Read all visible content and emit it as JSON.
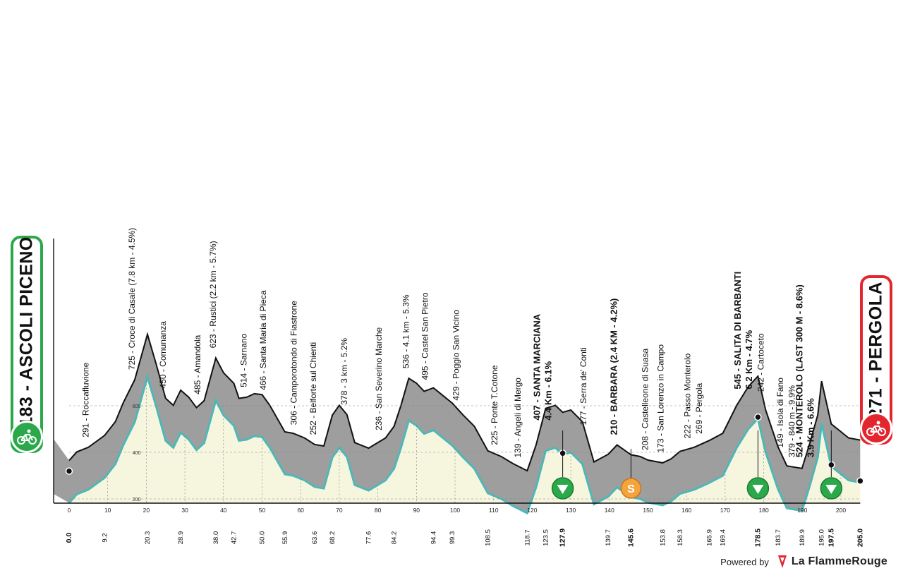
{
  "chart_data": {
    "type": "area",
    "x_unit": "km",
    "ylim": [
      0,
      900
    ],
    "y_ticks": [
      200,
      400,
      600
    ],
    "y_tick_labels": [
      "200",
      "400",
      "600"
    ],
    "x_ticks": [
      0,
      10,
      20,
      30,
      40,
      50,
      60,
      70,
      80,
      90,
      100,
      110,
      120,
      130,
      140,
      150,
      160,
      170,
      180,
      190,
      200
    ],
    "x_tick_labels": [
      "0",
      "10",
      "20",
      "30",
      "40",
      "50",
      "60",
      "70",
      "80",
      "90",
      "100",
      "110",
      "120",
      "130",
      "140",
      "150",
      "160",
      "170",
      "180",
      "190",
      "200"
    ],
    "profile": [
      {
        "km": 0,
        "ele": 183
      },
      {
        "km": 2,
        "ele": 220
      },
      {
        "km": 5,
        "ele": 240
      },
      {
        "km": 9.2,
        "ele": 291
      },
      {
        "km": 12,
        "ele": 350
      },
      {
        "km": 14,
        "ele": 430
      },
      {
        "km": 17,
        "ele": 530
      },
      {
        "km": 20.3,
        "ele": 725
      },
      {
        "km": 22.5,
        "ele": 600
      },
      {
        "km": 25,
        "ele": 450
      },
      {
        "km": 27,
        "ele": 420
      },
      {
        "km": 28.9,
        "ele": 485
      },
      {
        "km": 31,
        "ele": 455
      },
      {
        "km": 33,
        "ele": 410
      },
      {
        "km": 35,
        "ele": 440
      },
      {
        "km": 38,
        "ele": 623
      },
      {
        "km": 40,
        "ele": 560
      },
      {
        "km": 42.7,
        "ele": 514
      },
      {
        "km": 44,
        "ele": 450
      },
      {
        "km": 46,
        "ele": 455
      },
      {
        "km": 48,
        "ele": 470
      },
      {
        "km": 50,
        "ele": 466
      },
      {
        "km": 52,
        "ele": 420
      },
      {
        "km": 55.9,
        "ele": 306
      },
      {
        "km": 58,
        "ele": 300
      },
      {
        "km": 61,
        "ele": 280
      },
      {
        "km": 63.6,
        "ele": 252
      },
      {
        "km": 66,
        "ele": 245
      },
      {
        "km": 68.2,
        "ele": 378
      },
      {
        "km": 70,
        "ele": 420
      },
      {
        "km": 72,
        "ele": 380
      },
      {
        "km": 74,
        "ele": 260
      },
      {
        "km": 77.6,
        "ele": 236
      },
      {
        "km": 79,
        "ele": 250
      },
      {
        "km": 82,
        "ele": 280
      },
      {
        "km": 84.2,
        "ele": 330
      },
      {
        "km": 86,
        "ele": 420
      },
      {
        "km": 88,
        "ele": 536
      },
      {
        "km": 90,
        "ele": 515
      },
      {
        "km": 92,
        "ele": 480
      },
      {
        "km": 94.4,
        "ele": 495
      },
      {
        "km": 97,
        "ele": 460
      },
      {
        "km": 99.3,
        "ele": 429
      },
      {
        "km": 102,
        "ele": 380
      },
      {
        "km": 105,
        "ele": 330
      },
      {
        "km": 108.5,
        "ele": 225
      },
      {
        "km": 112,
        "ele": 200
      },
      {
        "km": 115,
        "ele": 170
      },
      {
        "km": 118.7,
        "ele": 139
      },
      {
        "km": 121,
        "ele": 250
      },
      {
        "km": 123.5,
        "ele": 407
      },
      {
        "km": 126,
        "ele": 420
      },
      {
        "km": 127.9,
        "ele": 390
      },
      {
        "km": 130,
        "ele": 400
      },
      {
        "km": 133,
        "ele": 350
      },
      {
        "km": 136,
        "ele": 177
      },
      {
        "km": 139.7,
        "ele": 210
      },
      {
        "km": 142,
        "ele": 250
      },
      {
        "km": 145.6,
        "ele": 208
      },
      {
        "km": 148,
        "ele": 200
      },
      {
        "km": 150,
        "ele": 185
      },
      {
        "km": 153.8,
        "ele": 173
      },
      {
        "km": 156,
        "ele": 190
      },
      {
        "km": 158.3,
        "ele": 222
      },
      {
        "km": 162,
        "ele": 240
      },
      {
        "km": 165.9,
        "ele": 269
      },
      {
        "km": 169.4,
        "ele": 300
      },
      {
        "km": 173,
        "ele": 420
      },
      {
        "km": 176,
        "ele": 500
      },
      {
        "km": 178.5,
        "ele": 545
      },
      {
        "km": 180.5,
        "ele": 400
      },
      {
        "km": 183.7,
        "ele": 242
      },
      {
        "km": 186,
        "ele": 160
      },
      {
        "km": 189.9,
        "ele": 149
      },
      {
        "km": 192,
        "ele": 260
      },
      {
        "km": 194,
        "ele": 379
      },
      {
        "km": 195,
        "ele": 524
      },
      {
        "km": 197.5,
        "ele": 340
      },
      {
        "km": 199,
        "ele": 320
      },
      {
        "km": 202,
        "ele": 280
      },
      {
        "km": 205.0,
        "ele": 271
      }
    ],
    "distance_labels": [
      {
        "km": 0.0,
        "label": "0.0",
        "bold": true
      },
      {
        "km": 9.2,
        "label": "9.2",
        "bold": false
      },
      {
        "km": 20.3,
        "label": "20.3",
        "bold": false
      },
      {
        "km": 28.9,
        "label": "28.9",
        "bold": false
      },
      {
        "km": 38.0,
        "label": "38.0",
        "bold": false
      },
      {
        "km": 42.7,
        "label": "42.7",
        "bold": false
      },
      {
        "km": 50.0,
        "label": "50.0",
        "bold": false
      },
      {
        "km": 55.9,
        "label": "55.9",
        "bold": false
      },
      {
        "km": 63.6,
        "label": "63.6",
        "bold": false
      },
      {
        "km": 68.2,
        "label": "68.2",
        "bold": false
      },
      {
        "km": 77.6,
        "label": "77.6",
        "bold": false
      },
      {
        "km": 84.2,
        "label": "84.2",
        "bold": false
      },
      {
        "km": 94.4,
        "label": "94.4",
        "bold": false
      },
      {
        "km": 99.3,
        "label": "99.3",
        "bold": false
      },
      {
        "km": 108.5,
        "label": "108.5",
        "bold": false
      },
      {
        "km": 118.7,
        "label": "118.7",
        "bold": false
      },
      {
        "km": 123.5,
        "label": "123.5",
        "bold": false
      },
      {
        "km": 127.9,
        "label": "127.9",
        "bold": true
      },
      {
        "km": 139.7,
        "label": "139.7",
        "bold": false
      },
      {
        "km": 145.6,
        "label": "145.6",
        "bold": true
      },
      {
        "km": 153.8,
        "label": "153.8",
        "bold": false
      },
      {
        "km": 158.3,
        "label": "158.3",
        "bold": false
      },
      {
        "km": 165.9,
        "label": "165.9",
        "bold": false
      },
      {
        "km": 169.4,
        "label": "169.4",
        "bold": false
      },
      {
        "km": 178.5,
        "label": "178.5",
        "bold": true
      },
      {
        "km": 183.7,
        "label": "183.7",
        "bold": false
      },
      {
        "km": 189.9,
        "label": "189.9",
        "bold": false
      },
      {
        "km": 195.0,
        "label": "195.0",
        "bold": false
      },
      {
        "km": 197.5,
        "label": "197.5",
        "bold": true
      },
      {
        "km": 205.0,
        "label": "205.0",
        "bold": true
      }
    ],
    "waypoints": [
      {
        "km": 5.0,
        "ele": 291,
        "label": "291 - Roccafluvione",
        "bold": false
      },
      {
        "km": 17.0,
        "ele": 725,
        "label": "725 - Croce di Casale (7.8 km - 4.5%)",
        "bold": false
      },
      {
        "km": 25.0,
        "ele": 450,
        "label": "450 - Comunanza",
        "bold": false
      },
      {
        "km": 34.0,
        "ele": 485,
        "label": "485 - Amandola",
        "bold": false
      },
      {
        "km": 38.0,
        "ele": 623,
        "label": "623 - Rustici (2.2 km - 5.7%)",
        "bold": false
      },
      {
        "km": 46.0,
        "ele": 514,
        "label": "514 - Sarnano",
        "bold": false
      },
      {
        "km": 51.0,
        "ele": 466,
        "label": "466 - Santa Maria di Pieca",
        "bold": false
      },
      {
        "km": 59.0,
        "ele": 306,
        "label": "306 - Camporotondo di Fiastrone",
        "bold": false
      },
      {
        "km": 64.0,
        "ele": 252,
        "label": "252 - Belforte sul Chienti",
        "bold": false
      },
      {
        "km": 72.0,
        "ele": 378,
        "label": "378 - 3 km - 5.2%",
        "bold": false
      },
      {
        "km": 81.0,
        "ele": 236,
        "label": "236 - San Severino Marche",
        "bold": false
      },
      {
        "km": 88.0,
        "ele": 536,
        "label": "536 - 4.1 km - 5.3%",
        "bold": false
      },
      {
        "km": 93.0,
        "ele": 495,
        "label": "495 - Castel San Pietro",
        "bold": false
      },
      {
        "km": 101.0,
        "ele": 429,
        "label": "429 - Poggio San Vicino",
        "bold": false
      },
      {
        "km": 111.0,
        "ele": 225,
        "label": "225 - Ponte T.Cotone",
        "bold": false
      },
      {
        "km": 117.0,
        "ele": 139,
        "label": "139 - Angeli di Mergo",
        "bold": false
      },
      {
        "km": 122.0,
        "ele": 407,
        "label": "407 - SANTA MARCIANA",
        "sub": "4.4 Km - 6.1%",
        "bold": true
      },
      {
        "km": 134.0,
        "ele": 177,
        "label": "177 - Serra de' Conti",
        "bold": false
      },
      {
        "km": 142.0,
        "ele": 210,
        "label": "210 - BARBARA (2.4 KM - 4.2%)",
        "bold": true
      },
      {
        "km": 150.0,
        "ele": 208,
        "label": "208 - Castelleone di Suasa",
        "bold": false
      },
      {
        "km": 154.0,
        "ele": 173,
        "label": "173 - San Lorenzo in Campo",
        "bold": false
      },
      {
        "km": 161.0,
        "ele": 222,
        "label": "222 - Passo Monterolo",
        "bold": false
      },
      {
        "km": 164.0,
        "ele": 269,
        "label": "269 - Pergola",
        "bold": false
      },
      {
        "km": 174.0,
        "ele": 545,
        "label": "545 - SALITA DI BARBANTI",
        "sub": "6.2 Km - 4.7%",
        "bold": true
      },
      {
        "km": 180.0,
        "ele": 242,
        "label": "242 - Cartoceto",
        "bold": false
      },
      {
        "km": 185.0,
        "ele": 149,
        "label": "149 - Isola di Fano",
        "bold": false
      },
      {
        "km": 188.0,
        "ele": 379,
        "label": "379 - 840 m - 9.9%",
        "bold": false
      },
      {
        "km": 190.0,
        "ele": 524,
        "label": "524 - MONTEROLO (LAST 300 M - 8.6%)",
        "sub": "3.9 Km - 6.6%",
        "bold": true
      }
    ],
    "markers": [
      {
        "km": 127.9,
        "type": "kom"
      },
      {
        "km": 145.6,
        "type": "sprint",
        "symbol": "S"
      },
      {
        "km": 178.5,
        "type": "kom"
      },
      {
        "km": 197.5,
        "type": "kom"
      }
    ],
    "dots": [
      0.0,
      127.9,
      145.6,
      178.5,
      197.5,
      205.0
    ]
  },
  "start": {
    "label": "183 - ASCOLI PICENO",
    "color": "#2aa84a",
    "icon": "cyclist-icon"
  },
  "finish": {
    "label": "271 - PERGOLA",
    "color": "#e3262e",
    "icon": "cyclist-icon"
  },
  "footer": {
    "powered_by": "Powered by",
    "brand": "La FlammeRouge",
    "brand_icon": "flame-icon"
  },
  "colors": {
    "profile_fill": "#9e9e9e",
    "accent_line": "#4fb7b7",
    "ground": "#f6f6df"
  }
}
